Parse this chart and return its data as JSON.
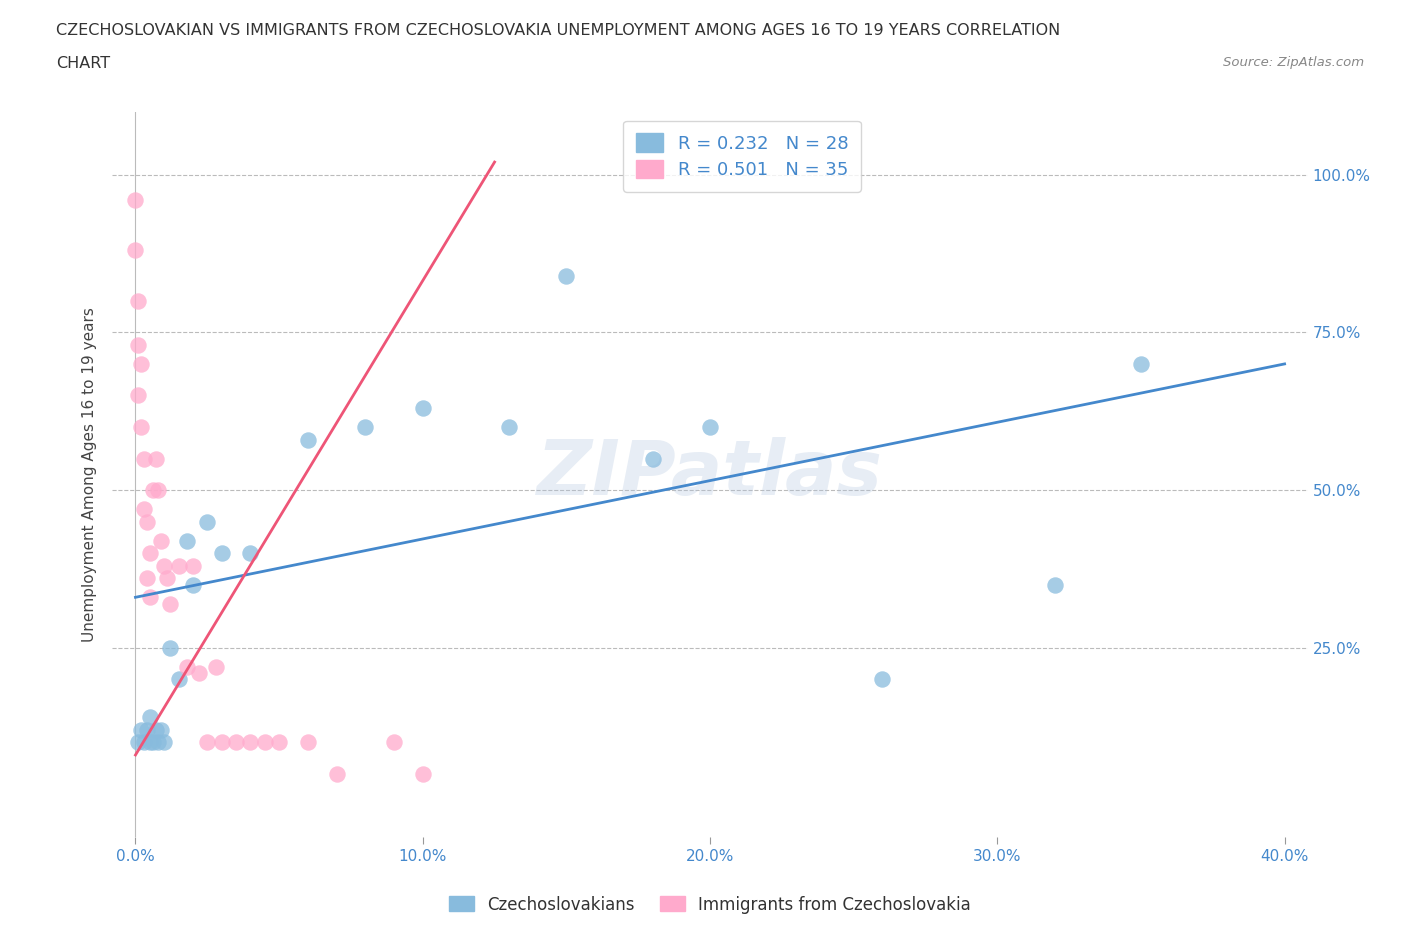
{
  "title_line1": "CZECHOSLOVAKIAN VS IMMIGRANTS FROM CZECHOSLOVAKIA UNEMPLOYMENT AMONG AGES 16 TO 19 YEARS CORRELATION",
  "title_line2": "CHART",
  "source_text": "Source: ZipAtlas.com",
  "ylabel": "Unemployment Among Ages 16 to 19 years",
  "legend_bottom": [
    "Czechoslovakians",
    "Immigrants from Czechoslovakia"
  ],
  "R_blue": 0.232,
  "N_blue": 28,
  "R_pink": 0.501,
  "N_pink": 35,
  "blue_color": "#88BBDD",
  "pink_color": "#FFAACC",
  "blue_line_color": "#4488CC",
  "pink_line_color": "#EE5577",
  "watermark": "ZIPatlas",
  "blue_scatter_x": [
    0.001,
    0.002,
    0.003,
    0.004,
    0.005,
    0.005,
    0.006,
    0.007,
    0.008,
    0.009,
    0.01,
    0.012,
    0.015,
    0.018,
    0.02,
    0.025,
    0.03,
    0.04,
    0.06,
    0.08,
    0.1,
    0.13,
    0.15,
    0.18,
    0.2,
    0.26,
    0.32,
    0.35
  ],
  "blue_scatter_y": [
    0.1,
    0.12,
    0.1,
    0.12,
    0.1,
    0.14,
    0.1,
    0.12,
    0.1,
    0.12,
    0.1,
    0.25,
    0.2,
    0.42,
    0.35,
    0.45,
    0.4,
    0.4,
    0.58,
    0.6,
    0.63,
    0.6,
    0.84,
    0.55,
    0.6,
    0.2,
    0.35,
    0.7
  ],
  "pink_scatter_x": [
    0.0,
    0.0,
    0.001,
    0.001,
    0.001,
    0.002,
    0.002,
    0.003,
    0.003,
    0.004,
    0.004,
    0.005,
    0.005,
    0.006,
    0.007,
    0.008,
    0.009,
    0.01,
    0.011,
    0.012,
    0.015,
    0.018,
    0.02,
    0.022,
    0.025,
    0.028,
    0.03,
    0.035,
    0.04,
    0.045,
    0.05,
    0.06,
    0.07,
    0.09,
    0.1
  ],
  "pink_scatter_y": [
    0.96,
    0.88,
    0.73,
    0.8,
    0.65,
    0.7,
    0.6,
    0.55,
    0.47,
    0.45,
    0.36,
    0.4,
    0.33,
    0.5,
    0.55,
    0.5,
    0.42,
    0.38,
    0.36,
    0.32,
    0.38,
    0.22,
    0.38,
    0.21,
    0.1,
    0.22,
    0.1,
    0.1,
    0.1,
    0.1,
    0.1,
    0.1,
    0.05,
    0.1,
    0.05
  ],
  "blue_trendline": [
    0.0,
    0.4,
    0.33,
    0.7
  ],
  "pink_trendline": [
    0.0,
    0.125,
    0.08,
    1.02
  ],
  "xticks": [
    0.0,
    0.1,
    0.2,
    0.3,
    0.4
  ],
  "yticks": [
    0.25,
    0.5,
    0.75,
    1.0
  ]
}
